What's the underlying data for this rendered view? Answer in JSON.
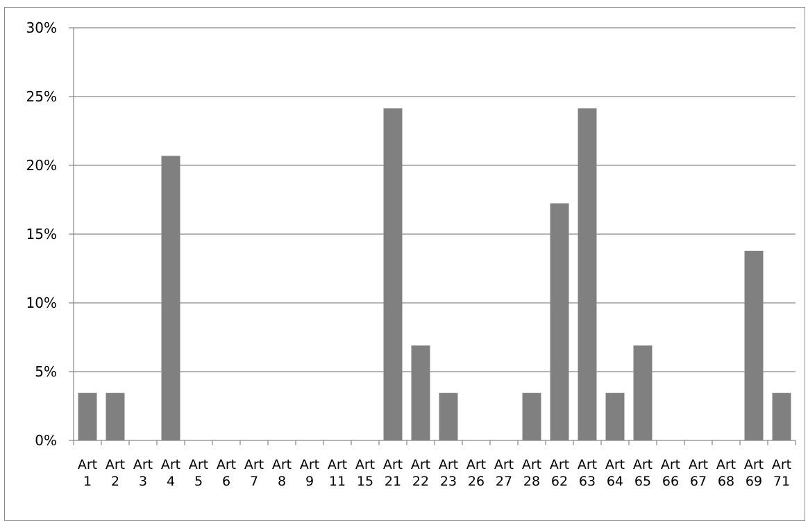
{
  "chart_data": {
    "type": "bar",
    "title": "",
    "xlabel": "",
    "ylabel": "",
    "ylim": [
      0,
      30
    ],
    "y_tick_values": [
      0,
      5,
      10,
      15,
      20,
      25,
      30
    ],
    "y_tick_labels": [
      "0%",
      "5%",
      "10%",
      "15%",
      "20%",
      "25%",
      "30%"
    ],
    "grid": true,
    "legend": "none",
    "categories": [
      [
        "Art",
        "1"
      ],
      [
        "Art",
        "2"
      ],
      [
        "Art",
        "3"
      ],
      [
        "Art",
        "4"
      ],
      [
        "Art",
        "5"
      ],
      [
        "Art",
        "6"
      ],
      [
        "Art",
        "7"
      ],
      [
        "Art",
        "8"
      ],
      [
        "Art",
        "9"
      ],
      [
        "Art",
        "11"
      ],
      [
        "Art",
        "15"
      ],
      [
        "Art",
        "21"
      ],
      [
        "Art",
        "22"
      ],
      [
        "Art",
        "23"
      ],
      [
        "Art",
        "26"
      ],
      [
        "Art",
        "27"
      ],
      [
        "Art",
        "28"
      ],
      [
        "Art",
        "62"
      ],
      [
        "Art",
        "63"
      ],
      [
        "Art",
        "64"
      ],
      [
        "Art",
        "65"
      ],
      [
        "Art",
        "66"
      ],
      [
        "Art",
        "67"
      ],
      [
        "Art",
        "68"
      ],
      [
        "Art",
        "69"
      ],
      [
        "Art",
        "71"
      ]
    ],
    "values": [
      3.45,
      3.45,
      0,
      20.69,
      0,
      0,
      0,
      0,
      0,
      0,
      0,
      24.14,
      6.9,
      3.45,
      0,
      0,
      3.45,
      17.24,
      24.14,
      3.45,
      6.9,
      0,
      0,
      0,
      13.79,
      3.45
    ],
    "bar_color": "#808080",
    "grid_color": "#868686",
    "axis_color": "#868686"
  }
}
